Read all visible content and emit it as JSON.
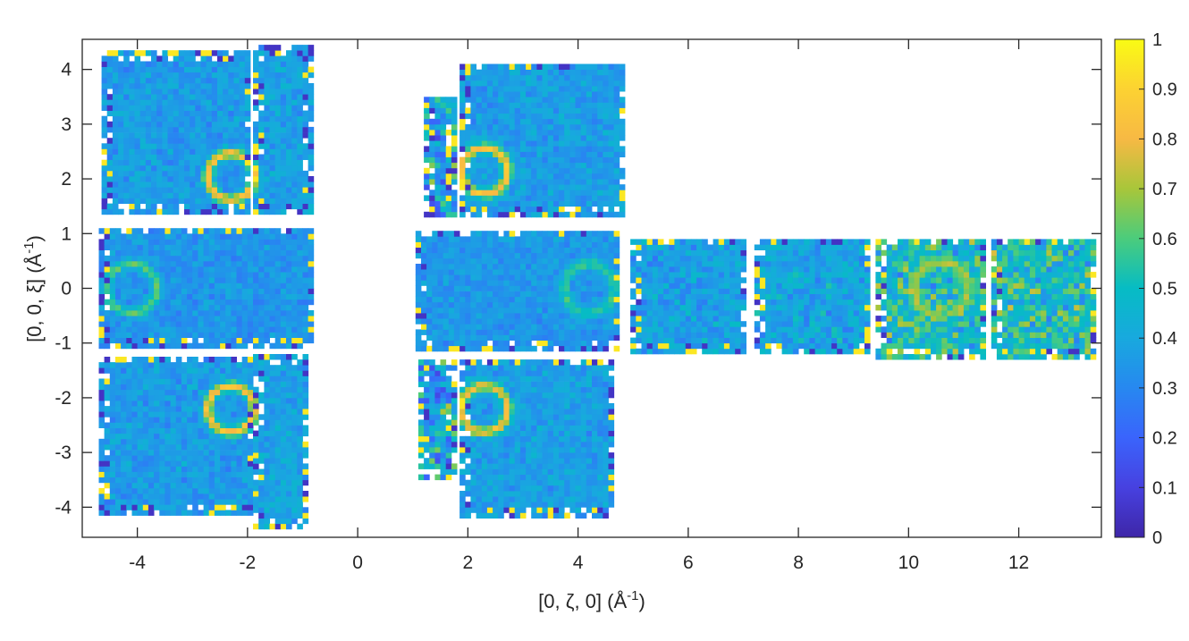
{
  "chart_data": {
    "type": "heatmap",
    "title": "",
    "xlabel": {
      "main": "[0, ζ, 0] (Å",
      "sup": "-1",
      "close": ")"
    },
    "ylabel": {
      "main": "[0, 0, ξ] (Å",
      "sup": "-1",
      "close": ")"
    },
    "xlim": [
      -5,
      13.5
    ],
    "ylim": [
      -4.55,
      4.55
    ],
    "xticks": [
      -4,
      -2,
      0,
      2,
      4,
      6,
      8,
      10,
      12
    ],
    "xtick_labels": [
      "-4",
      "-2",
      "0",
      "2",
      "4",
      "6",
      "8",
      "10",
      "12"
    ],
    "yticks": [
      -4,
      -3,
      -2,
      -1,
      0,
      1,
      2,
      3,
      4
    ],
    "ytick_labels": [
      "-4",
      "-3",
      "-2",
      "-1",
      "0",
      "1",
      "2",
      "3",
      "4"
    ],
    "colorbar": {
      "range": [
        0,
        1
      ],
      "ticks": [
        0,
        0.1,
        0.2,
        0.3,
        0.4,
        0.5,
        0.6,
        0.7,
        0.8,
        0.9,
        1
      ],
      "tick_labels": [
        "0",
        "0.1",
        "0.2",
        "0.3",
        "0.4",
        "0.5",
        "0.6",
        "0.7",
        "0.8",
        "0.9",
        "1"
      ],
      "colormap": "parula"
    },
    "cell_size": 0.1,
    "panels": [
      {
        "x": [
          -4.65,
          -1.95
        ],
        "y": [
          1.35,
          4.3
        ],
        "mean": 0.36,
        "noise": 0.07
      },
      {
        "x": [
          -1.9,
          -0.85
        ],
        "y": [
          1.35,
          4.4
        ],
        "mean": 0.38,
        "noise": 0.07
      },
      {
        "x": [
          -4.7,
          -0.85
        ],
        "y": [
          -1.1,
          1.1
        ],
        "mean": 0.34,
        "noise": 0.06
      },
      {
        "x": [
          -4.7,
          -1.95
        ],
        "y": [
          -4.15,
          -1.25
        ],
        "mean": 0.36,
        "noise": 0.07
      },
      {
        "x": [
          -1.9,
          -0.9
        ],
        "y": [
          -4.4,
          -1.25
        ],
        "mean": 0.38,
        "noise": 0.07
      },
      {
        "x": [
          1.2,
          1.75
        ],
        "y": [
          1.3,
          3.5
        ],
        "mean": 0.4,
        "noise": 0.2
      },
      {
        "x": [
          1.85,
          4.85
        ],
        "y": [
          1.3,
          4.1
        ],
        "mean": 0.37,
        "noise": 0.07
      },
      {
        "x": [
          1.05,
          4.75
        ],
        "y": [
          -1.15,
          1.0
        ],
        "mean": 0.35,
        "noise": 0.06
      },
      {
        "x": [
          1.1,
          1.75
        ],
        "y": [
          -3.5,
          -1.3
        ],
        "mean": 0.4,
        "noise": 0.2
      },
      {
        "x": [
          1.85,
          4.65
        ],
        "y": [
          -4.2,
          -1.3
        ],
        "mean": 0.37,
        "noise": 0.07
      },
      {
        "x": [
          4.95,
          7.0
        ],
        "y": [
          -1.2,
          0.9
        ],
        "mean": 0.38,
        "noise": 0.09
      },
      {
        "x": [
          7.2,
          9.3
        ],
        "y": [
          -1.2,
          0.9
        ],
        "mean": 0.4,
        "noise": 0.1
      },
      {
        "x": [
          9.4,
          11.4
        ],
        "y": [
          -1.3,
          0.85
        ],
        "mean": 0.5,
        "noise": 0.17
      },
      {
        "x": [
          11.5,
          13.4
        ],
        "y": [
          -1.3,
          0.85
        ],
        "mean": 0.5,
        "noise": 0.17
      }
    ],
    "rings": [
      {
        "cx": -2.3,
        "cy": 2.05,
        "r": 0.42,
        "value": 0.85
      },
      {
        "cx": -2.3,
        "cy": -2.2,
        "r": 0.42,
        "value": 0.85
      },
      {
        "cx": 2.3,
        "cy": 2.15,
        "r": 0.42,
        "value": 0.85
      },
      {
        "cx": 2.3,
        "cy": -2.2,
        "r": 0.42,
        "value": 0.82
      },
      {
        "cx": -4.1,
        "cy": 0.0,
        "r": 0.45,
        "value": 0.6
      },
      {
        "cx": 4.2,
        "cy": 0.0,
        "r": 0.45,
        "value": 0.58
      },
      {
        "cx": 10.6,
        "cy": 0.0,
        "r": 0.5,
        "value": 0.7
      }
    ]
  }
}
